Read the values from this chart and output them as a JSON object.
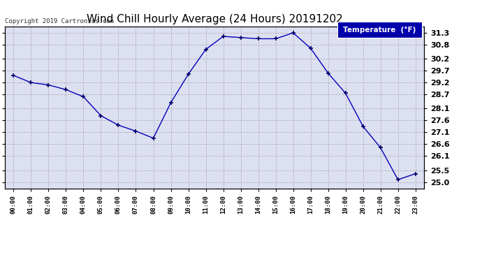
{
  "title": "Wind Chill Hourly Average (24 Hours) 20191202",
  "copyright": "Copyright 2019 Cartronics.com",
  "legend_label": "Temperature  (°F)",
  "x_labels": [
    "00:00",
    "01:00",
    "02:00",
    "03:00",
    "04:00",
    "05:00",
    "06:00",
    "07:00",
    "08:00",
    "09:00",
    "10:00",
    "11:00",
    "12:00",
    "13:00",
    "14:00",
    "15:00",
    "16:00",
    "17:00",
    "18:00",
    "19:00",
    "20:00",
    "21:00",
    "22:00",
    "23:00"
  ],
  "y_values": [
    29.5,
    29.2,
    29.1,
    28.9,
    28.6,
    27.8,
    27.4,
    27.15,
    26.85,
    28.35,
    29.55,
    30.6,
    31.15,
    31.1,
    31.05,
    31.05,
    31.3,
    30.65,
    29.6,
    28.75,
    27.35,
    26.45,
    25.1,
    25.35
  ],
  "ylim_min": 24.72,
  "ylim_max": 31.58,
  "yticks": [
    25.0,
    25.5,
    26.1,
    26.6,
    27.1,
    27.6,
    28.1,
    28.7,
    29.2,
    29.7,
    30.2,
    30.8,
    31.3
  ],
  "line_color": "#0000bb",
  "marker": "+",
  "marker_size": 5,
  "marker_color": "#000066",
  "bg_color": "#ffffff",
  "plot_bg_color": "#dde0f0",
  "grid_color": "#b0b0c0",
  "title_fontsize": 11,
  "legend_bg_color": "#0000aa",
  "legend_text_color": "#ffffff"
}
